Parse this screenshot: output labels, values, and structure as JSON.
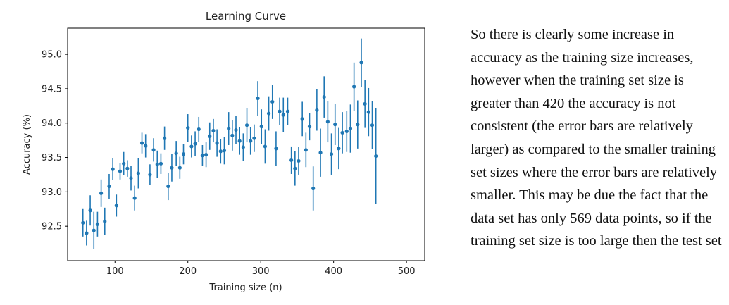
{
  "chart_data": {
    "type": "scatter",
    "title": "Learning Curve",
    "xlabel": "Training size (n)",
    "ylabel": "Accuracy (%)",
    "xlim": [
      35,
      525
    ],
    "ylim": [
      92.0,
      95.38
    ],
    "xticks": [
      100,
      200,
      300,
      400,
      500
    ],
    "yticks": [
      92.5,
      93.0,
      93.5,
      94.0,
      94.5,
      95.0
    ],
    "xtick_labels": [
      "100",
      "200",
      "300",
      "400",
      "500"
    ],
    "ytick_labels": [
      "92.5",
      "93.0",
      "93.5",
      "94.0",
      "94.5",
      "95.0"
    ],
    "grid": false,
    "color": "#1f77b4",
    "points": [
      {
        "x": 56,
        "y": 92.55,
        "err": 0.2
      },
      {
        "x": 61,
        "y": 92.4,
        "err": 0.18
      },
      {
        "x": 66,
        "y": 92.73,
        "err": 0.22
      },
      {
        "x": 71,
        "y": 92.44,
        "err": 0.27
      },
      {
        "x": 76,
        "y": 92.53,
        "err": 0.18
      },
      {
        "x": 81,
        "y": 92.98,
        "err": 0.2
      },
      {
        "x": 86,
        "y": 92.57,
        "err": 0.2
      },
      {
        "x": 92,
        "y": 93.08,
        "err": 0.18
      },
      {
        "x": 97,
        "y": 93.33,
        "err": 0.16
      },
      {
        "x": 102,
        "y": 92.8,
        "err": 0.16
      },
      {
        "x": 107,
        "y": 93.3,
        "err": 0.12
      },
      {
        "x": 112,
        "y": 93.41,
        "err": 0.17
      },
      {
        "x": 117,
        "y": 93.34,
        "err": 0.12
      },
      {
        "x": 122,
        "y": 93.2,
        "err": 0.18
      },
      {
        "x": 127,
        "y": 92.91,
        "err": 0.18
      },
      {
        "x": 132,
        "y": 93.27,
        "err": 0.22
      },
      {
        "x": 137,
        "y": 93.71,
        "err": 0.15
      },
      {
        "x": 142,
        "y": 93.67,
        "err": 0.17
      },
      {
        "x": 148,
        "y": 93.25,
        "err": 0.15
      },
      {
        "x": 153,
        "y": 93.61,
        "err": 0.17
      },
      {
        "x": 158,
        "y": 93.4,
        "err": 0.2
      },
      {
        "x": 163,
        "y": 93.41,
        "err": 0.15
      },
      {
        "x": 168,
        "y": 93.78,
        "err": 0.17
      },
      {
        "x": 173,
        "y": 93.08,
        "err": 0.2
      },
      {
        "x": 178,
        "y": 93.35,
        "err": 0.2
      },
      {
        "x": 184,
        "y": 93.56,
        "err": 0.18
      },
      {
        "x": 189,
        "y": 93.35,
        "err": 0.16
      },
      {
        "x": 194,
        "y": 93.55,
        "err": 0.15
      },
      {
        "x": 200,
        "y": 93.93,
        "err": 0.2
      },
      {
        "x": 205,
        "y": 93.66,
        "err": 0.16
      },
      {
        "x": 210,
        "y": 93.7,
        "err": 0.18
      },
      {
        "x": 215,
        "y": 93.91,
        "err": 0.18
      },
      {
        "x": 220,
        "y": 93.53,
        "err": 0.15
      },
      {
        "x": 225,
        "y": 93.54,
        "err": 0.18
      },
      {
        "x": 230,
        "y": 93.81,
        "err": 0.2
      },
      {
        "x": 235,
        "y": 93.89,
        "err": 0.17
      },
      {
        "x": 240,
        "y": 93.71,
        "err": 0.2
      },
      {
        "x": 245,
        "y": 93.59,
        "err": 0.18
      },
      {
        "x": 250,
        "y": 93.6,
        "err": 0.2
      },
      {
        "x": 256,
        "y": 93.92,
        "err": 0.24
      },
      {
        "x": 261,
        "y": 93.82,
        "err": 0.22
      },
      {
        "x": 266,
        "y": 93.9,
        "err": 0.2
      },
      {
        "x": 271,
        "y": 93.74,
        "err": 0.2
      },
      {
        "x": 276,
        "y": 93.65,
        "err": 0.2
      },
      {
        "x": 281,
        "y": 93.97,
        "err": 0.25
      },
      {
        "x": 286,
        "y": 93.74,
        "err": 0.2
      },
      {
        "x": 291,
        "y": 93.78,
        "err": 0.2
      },
      {
        "x": 296,
        "y": 94.36,
        "err": 0.25
      },
      {
        "x": 301,
        "y": 93.95,
        "err": 0.25
      },
      {
        "x": 306,
        "y": 93.66,
        "err": 0.25
      },
      {
        "x": 311,
        "y": 94.14,
        "err": 0.25
      },
      {
        "x": 316,
        "y": 94.31,
        "err": 0.25
      },
      {
        "x": 321,
        "y": 93.63,
        "err": 0.25
      },
      {
        "x": 326,
        "y": 94.17,
        "err": 0.2
      },
      {
        "x": 331,
        "y": 94.12,
        "err": 0.25
      },
      {
        "x": 337,
        "y": 94.17,
        "err": 0.2
      },
      {
        "x": 342,
        "y": 93.46,
        "err": 0.2
      },
      {
        "x": 347,
        "y": 93.34,
        "err": 0.25
      },
      {
        "x": 352,
        "y": 93.45,
        "err": 0.2
      },
      {
        "x": 357,
        "y": 94.06,
        "err": 0.25
      },
      {
        "x": 362,
        "y": 93.61,
        "err": 0.25
      },
      {
        "x": 367,
        "y": 93.95,
        "err": 0.2
      },
      {
        "x": 372,
        "y": 93.05,
        "err": 0.32
      },
      {
        "x": 377,
        "y": 94.19,
        "err": 0.3
      },
      {
        "x": 382,
        "y": 93.57,
        "err": 0.35
      },
      {
        "x": 387,
        "y": 94.38,
        "err": 0.3
      },
      {
        "x": 392,
        "y": 94.02,
        "err": 0.3
      },
      {
        "x": 397,
        "y": 93.55,
        "err": 0.3
      },
      {
        "x": 402,
        "y": 93.98,
        "err": 0.3
      },
      {
        "x": 407,
        "y": 93.63,
        "err": 0.3
      },
      {
        "x": 412,
        "y": 93.86,
        "err": 0.3
      },
      {
        "x": 418,
        "y": 93.88,
        "err": 0.3
      },
      {
        "x": 423,
        "y": 93.92,
        "err": 0.35
      },
      {
        "x": 428,
        "y": 94.53,
        "err": 0.35
      },
      {
        "x": 433,
        "y": 93.98,
        "err": 0.35
      },
      {
        "x": 438,
        "y": 94.88,
        "err": 0.35
      },
      {
        "x": 443,
        "y": 94.28,
        "err": 0.35
      },
      {
        "x": 448,
        "y": 94.16,
        "err": 0.35
      },
      {
        "x": 453,
        "y": 93.97,
        "err": 0.35
      },
      {
        "x": 458,
        "y": 93.52,
        "err": 0.7
      }
    ]
  },
  "notes": {
    "text": "So there is clearly some increase in accuracy as the training size increases, however when the training set size is greater than 420 the accuracy is not consistent (the error bars are relatively larger) as compared to the smaller training set sizes where the error bars are relatively smaller. This may be due the fact that the data set has only 569 data points, so if the training set size is too large then the test set"
  }
}
